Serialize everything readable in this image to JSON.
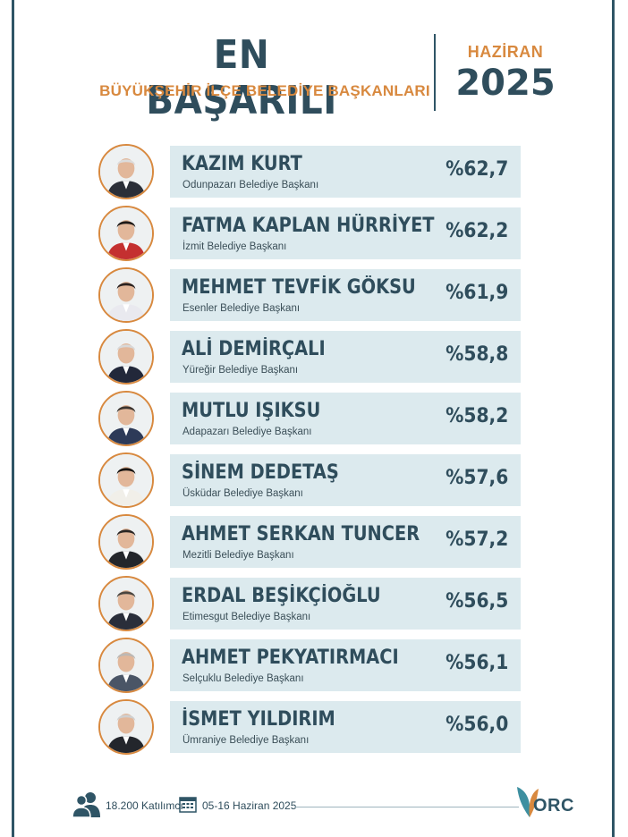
{
  "header": {
    "title": "EN BAŞARILI",
    "subtitle": "BÜYÜKŞEHİR İLÇE BELEDİYE BAŞKANLARI",
    "month": "HAZİRAN",
    "year": "2025"
  },
  "mayors": [
    {
      "name": "KAZIM KURT",
      "role": "Odunpazarı Belediye Başkanı",
      "percent": "%62,7"
    },
    {
      "name": "FATMA KAPLAN HÜRRİYET",
      "role": "İzmit Belediye Başkanı",
      "percent": "%62,2"
    },
    {
      "name": "MEHMET TEVFİK GÖKSU",
      "role": "Esenler Belediye Başkanı",
      "percent": "%61,9"
    },
    {
      "name": "ALİ DEMİRÇALI",
      "role": "Yüreğir Belediye Başkanı",
      "percent": "%58,8"
    },
    {
      "name": "MUTLU IŞIKSU",
      "role": "Adapazarı Belediye Başkanı",
      "percent": "%58,2"
    },
    {
      "name": "SİNEM DEDETAŞ",
      "role": "Üsküdar Belediye Başkanı",
      "percent": "%57,6"
    },
    {
      "name": "AHMET SERKAN TUNCER",
      "role": "Mezitli Belediye Başkanı",
      "percent": "%57,2"
    },
    {
      "name": "ERDAL BEŞİKÇİOĞLU",
      "role": "Etimesgut Belediye Başkanı",
      "percent": "%56,5"
    },
    {
      "name": "AHMET PEKYATIRMACI",
      "role": "Selçuklu Belediye Başkanı",
      "percent": "%56,1"
    },
    {
      "name": "İSMET YILDIRIM",
      "role": "Ümraniye Belediye Başkanı",
      "percent": "%56,0"
    }
  ],
  "footer": {
    "participants": "18.200 Katılımcı",
    "dates": "05-16 Haziran 2025",
    "logo": "ORC"
  },
  "colors": {
    "primary": "#2f4d5c",
    "accent": "#d8893f",
    "panel": "#dceaee"
  },
  "icons": [
    "people-icon",
    "calendar-icon",
    "orc-logo"
  ]
}
